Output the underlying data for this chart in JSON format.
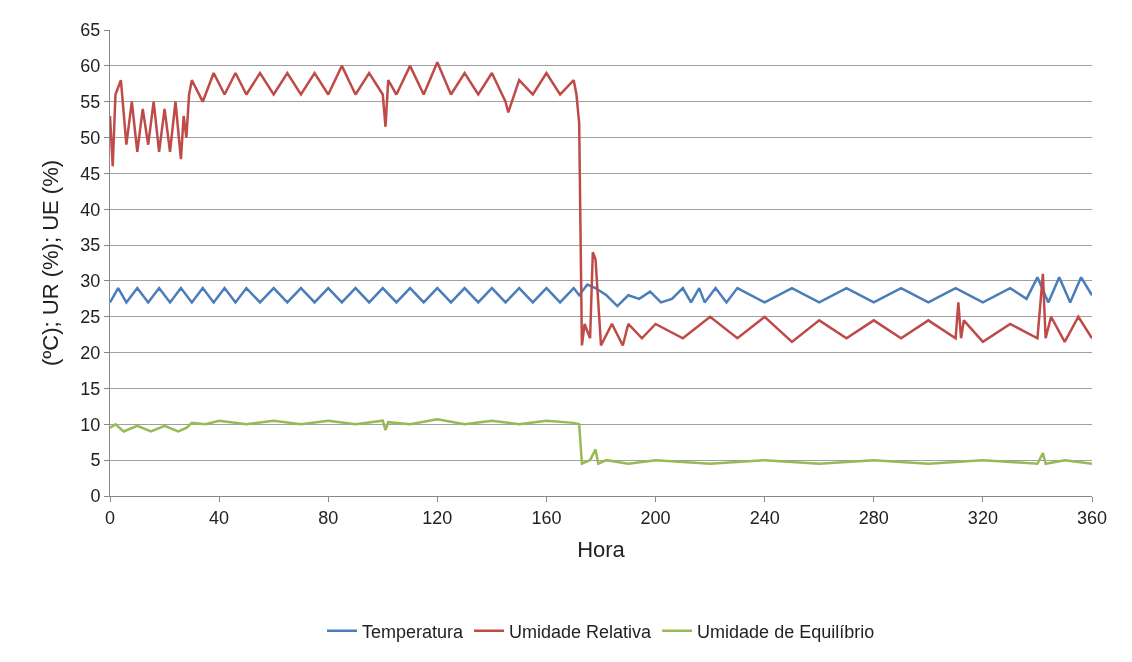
{
  "chart_data": {
    "type": "line",
    "xlabel": "Hora",
    "ylabel": "(ºC); UR (%); UE (%)",
    "xlim": [
      0,
      360
    ],
    "xticks": [
      0,
      40,
      80,
      120,
      160,
      200,
      240,
      280,
      320,
      360
    ],
    "ylim": [
      0,
      65
    ],
    "yticks": [
      0,
      5,
      10,
      15,
      20,
      25,
      30,
      35,
      40,
      45,
      50,
      55,
      60,
      65
    ],
    "grid": "y",
    "legend": "bottom",
    "marker": "none",
    "line_style": "solid",
    "series": [
      {
        "name": "Temperatura",
        "color": "#4a7ebb",
        "x": [
          0,
          3,
          6,
          10,
          14,
          18,
          22,
          26,
          30,
          34,
          38,
          42,
          46,
          50,
          55,
          60,
          65,
          70,
          75,
          80,
          85,
          90,
          95,
          100,
          105,
          110,
          115,
          120,
          125,
          130,
          135,
          140,
          145,
          150,
          155,
          160,
          165,
          170,
          172,
          175,
          178,
          182,
          186,
          190,
          194,
          198,
          202,
          206,
          210,
          213,
          216,
          218,
          222,
          226,
          230,
          240,
          250,
          260,
          270,
          280,
          290,
          300,
          310,
          320,
          330,
          336,
          340,
          344,
          348,
          352,
          356,
          360
        ],
        "values": [
          27,
          29,
          27,
          29,
          27,
          29,
          27,
          29,
          27,
          29,
          27,
          29,
          27,
          29,
          27,
          29,
          27,
          29,
          27,
          29,
          27,
          29,
          27,
          29,
          27,
          29,
          27,
          29,
          27,
          29,
          27,
          29,
          27,
          29,
          27,
          29,
          27,
          29,
          28,
          29.5,
          29,
          28,
          26.5,
          28,
          27.5,
          28.5,
          27,
          27.5,
          29,
          27,
          29,
          27,
          29,
          27,
          29,
          27,
          29,
          27,
          29,
          27,
          29,
          27,
          29,
          27,
          29,
          27.5,
          30.5,
          27,
          30.5,
          27,
          30.5,
          28
        ]
      },
      {
        "name": "Umidade Relativa",
        "color": "#be4b48",
        "x": [
          0,
          1,
          2,
          4,
          6,
          8,
          10,
          12,
          14,
          16,
          18,
          20,
          22,
          24,
          26,
          27,
          28,
          29,
          30,
          34,
          38,
          42,
          46,
          50,
          55,
          60,
          65,
          70,
          75,
          80,
          85,
          90,
          95,
          100,
          101,
          102,
          105,
          110,
          115,
          120,
          125,
          130,
          135,
          140,
          145,
          146,
          150,
          155,
          160,
          165,
          170,
          171,
          172,
          173,
          174,
          176,
          177,
          178,
          180,
          184,
          188,
          190,
          195,
          200,
          210,
          220,
          230,
          240,
          250,
          260,
          270,
          280,
          290,
          300,
          310,
          311,
          312,
          313,
          320,
          330,
          340,
          342,
          343,
          345,
          350,
          355,
          360
        ],
        "values": [
          53,
          46,
          56,
          58,
          49,
          55,
          48,
          54,
          49,
          55,
          48,
          54,
          48,
          55,
          47,
          53,
          50,
          56,
          58,
          55,
          59,
          56,
          59,
          56,
          59,
          56,
          59,
          56,
          59,
          56,
          60,
          56,
          59,
          56,
          51.5,
          58,
          56,
          60,
          56,
          60.5,
          56,
          59,
          56,
          59,
          55,
          53.5,
          58,
          56,
          59,
          56,
          58,
          56,
          52,
          21,
          24,
          22,
          34,
          33,
          21,
          24,
          21,
          24,
          22,
          24,
          22,
          25,
          22,
          25,
          21.5,
          24.5,
          22,
          24.5,
          22,
          24.5,
          22,
          27,
          22,
          24.5,
          21.5,
          24,
          22,
          31,
          22,
          25,
          21.5,
          25,
          22
        ]
      },
      {
        "name": "Umidade de Equilíbrio",
        "color": "#98b954",
        "x": [
          0,
          2,
          5,
          10,
          15,
          20,
          25,
          28,
          30,
          35,
          40,
          50,
          60,
          70,
          80,
          90,
          100,
          101,
          102,
          110,
          120,
          130,
          140,
          150,
          160,
          170,
          172,
          173,
          176,
          178,
          179,
          182,
          190,
          200,
          220,
          240,
          260,
          280,
          300,
          320,
          340,
          342,
          343,
          350,
          360
        ],
        "values": [
          9.5,
          10,
          9,
          9.8,
          9,
          9.8,
          9,
          9.5,
          10.2,
          10,
          10.5,
          10,
          10.5,
          10,
          10.5,
          10,
          10.5,
          9.2,
          10.3,
          10,
          10.7,
          10,
          10.5,
          10,
          10.5,
          10.2,
          10,
          4.5,
          5,
          6.5,
          4.5,
          5,
          4.5,
          5,
          4.5,
          5,
          4.5,
          5,
          4.5,
          5,
          4.5,
          6,
          4.5,
          5,
          4.5
        ]
      }
    ]
  }
}
